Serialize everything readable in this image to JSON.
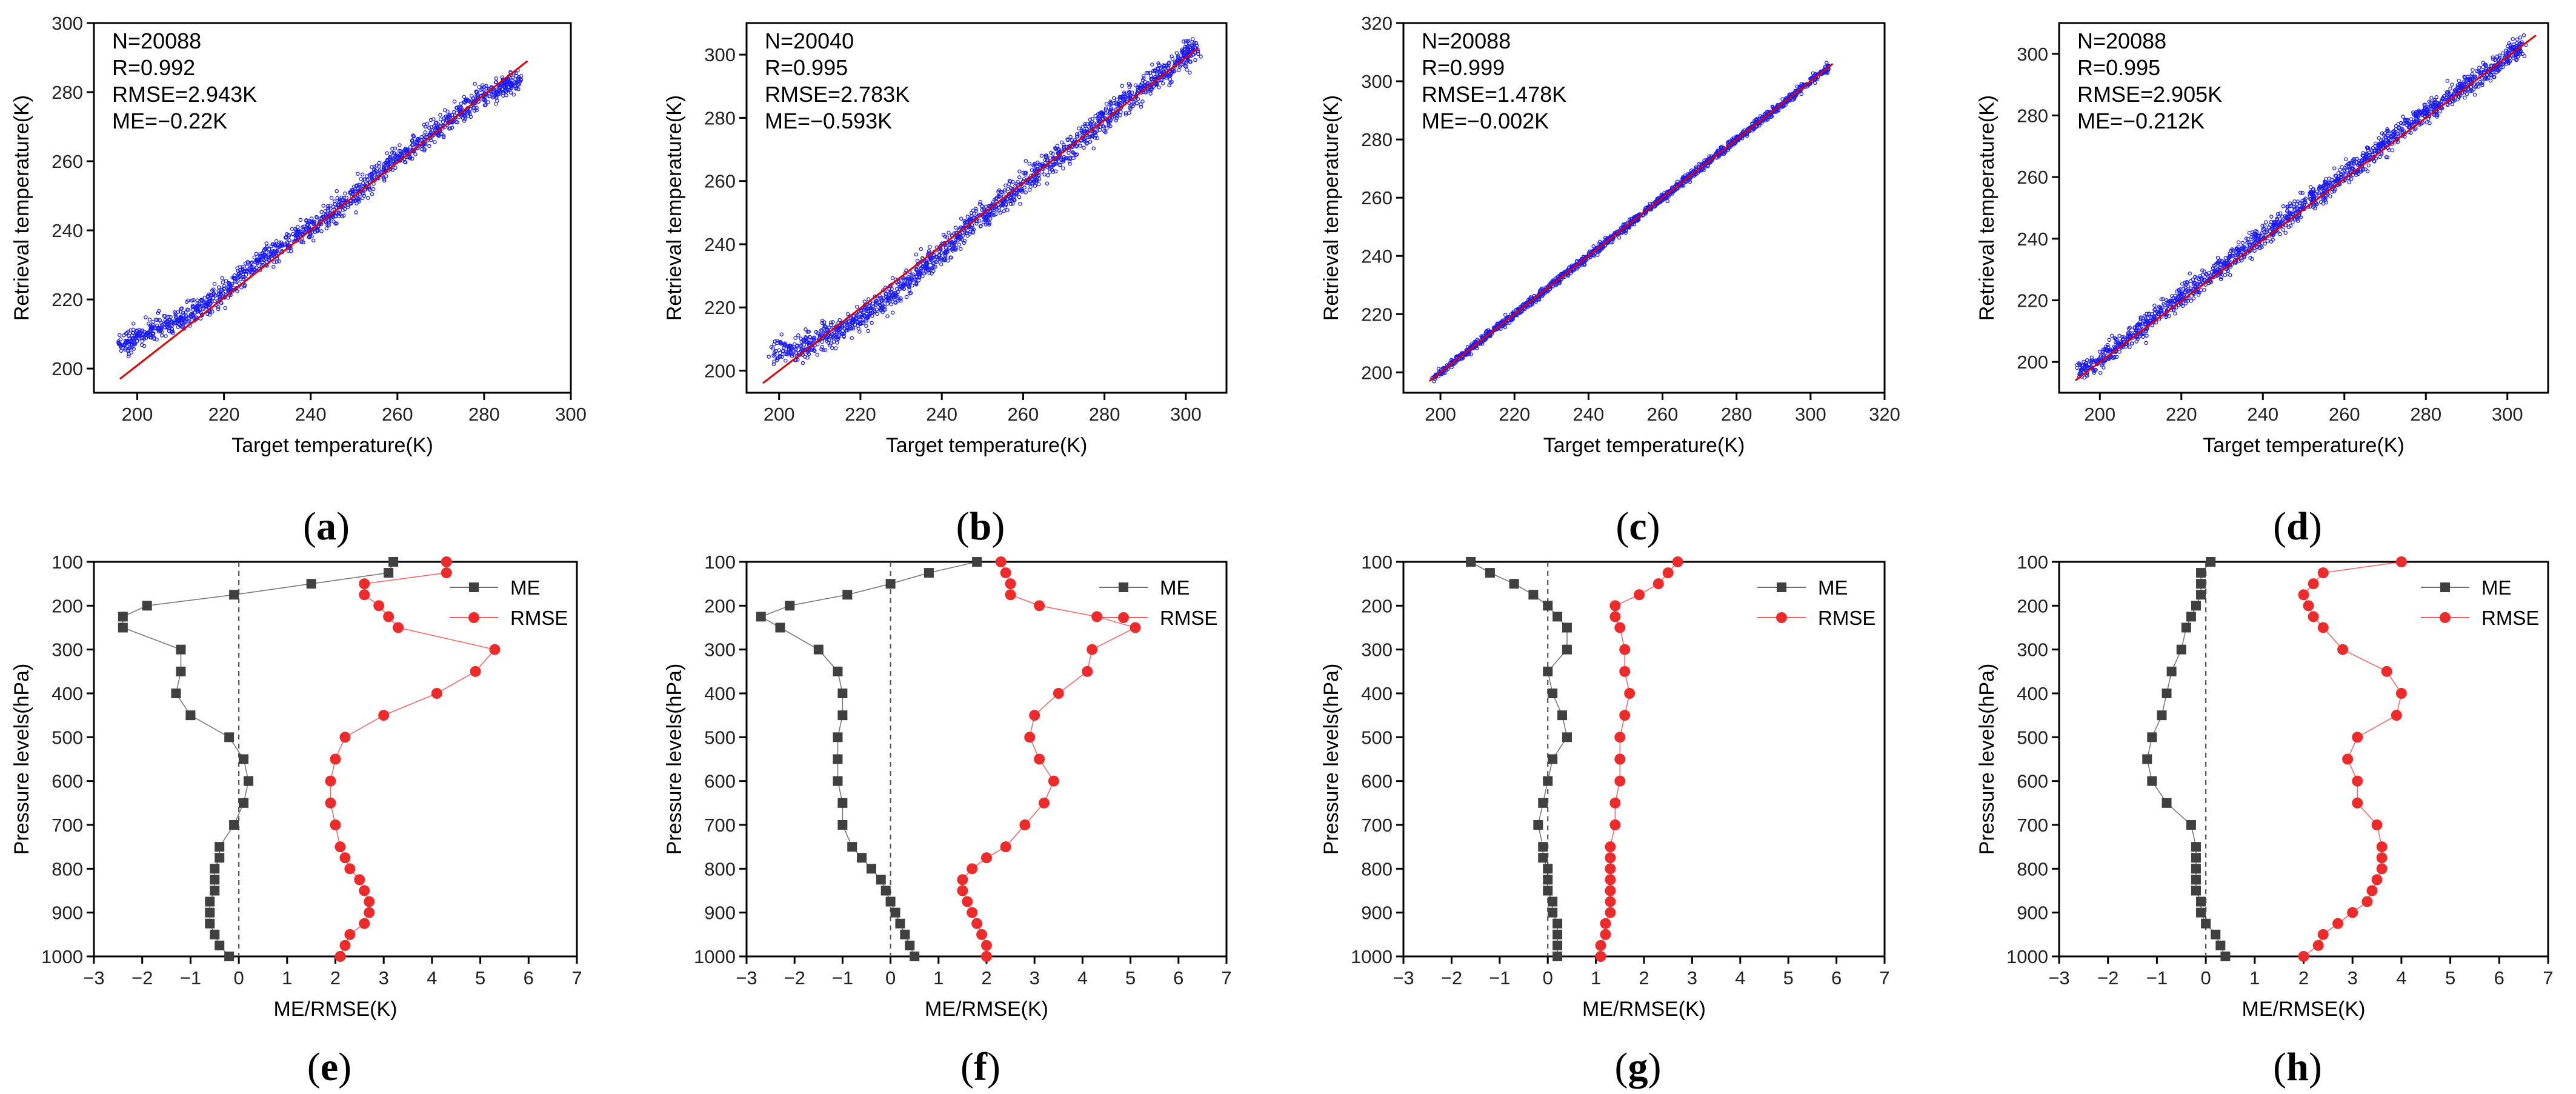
{
  "chart_data": [
    {
      "panel": "a",
      "type": "scatter",
      "xlabel": "Target temperature(K)",
      "ylabel": "Retrieval temperature(K)",
      "xlim": [
        190,
        300
      ],
      "ylim": [
        193,
        300
      ],
      "xticks": [
        200,
        220,
        240,
        260,
        280,
        300
      ],
      "yticks": [
        200,
        220,
        240,
        260,
        280,
        300
      ],
      "stats": [
        "N=20088",
        "R=0.992",
        "RMSE=2.943K",
        "ME=−0.22K"
      ],
      "fit": [
        [
          196,
          197
        ],
        [
          290,
          289
        ]
      ],
      "cloud": [
        [
          196,
          207
        ],
        [
          200,
          209
        ],
        [
          205,
          212
        ],
        [
          210,
          214
        ],
        [
          215,
          218
        ],
        [
          220,
          222
        ],
        [
          225,
          228
        ],
        [
          230,
          233
        ],
        [
          235,
          237
        ],
        [
          240,
          241
        ],
        [
          245,
          245
        ],
        [
          250,
          250
        ],
        [
          255,
          256
        ],
        [
          260,
          261
        ],
        [
          265,
          265
        ],
        [
          270,
          270
        ],
        [
          275,
          275
        ],
        [
          280,
          279
        ],
        [
          285,
          282
        ],
        [
          288,
          284
        ]
      ],
      "spread": 5
    },
    {
      "panel": "b",
      "type": "scatter",
      "xlabel": "Target temperature(K)",
      "ylabel": "Retrieval temperature(K)",
      "xlim": [
        192,
        310
      ],
      "ylim": [
        193,
        310
      ],
      "xticks": [
        200,
        220,
        240,
        260,
        280,
        300
      ],
      "yticks": [
        200,
        220,
        240,
        260,
        280,
        300
      ],
      "stats": [
        "N=20040",
        "R=0.995",
        "RMSE=2.783K",
        "ME=−0.593K"
      ],
      "fit": [
        [
          196,
          196
        ],
        [
          303,
          302
        ]
      ],
      "cloud": [
        [
          198,
          206
        ],
        [
          205,
          207
        ],
        [
          210,
          210
        ],
        [
          215,
          213
        ],
        [
          220,
          217
        ],
        [
          225,
          221
        ],
        [
          230,
          226
        ],
        [
          235,
          232
        ],
        [
          240,
          238
        ],
        [
          245,
          244
        ],
        [
          250,
          249
        ],
        [
          255,
          254
        ],
        [
          260,
          259
        ],
        [
          265,
          264
        ],
        [
          270,
          269
        ],
        [
          275,
          274
        ],
        [
          280,
          280
        ],
        [
          285,
          285
        ],
        [
          290,
          290
        ],
        [
          295,
          295
        ],
        [
          300,
          300
        ],
        [
          302,
          302
        ]
      ],
      "spread": 6
    },
    {
      "panel": "c",
      "type": "scatter",
      "xlabel": "Target temperature(K)",
      "ylabel": "Retrieval temperature(K)",
      "xlim": [
        190,
        320
      ],
      "ylim": [
        193,
        320
      ],
      "xticks": [
        200,
        220,
        240,
        260,
        280,
        300,
        320
      ],
      "yticks": [
        200,
        220,
        240,
        260,
        280,
        300,
        320
      ],
      "stats": [
        "N=20088",
        "R=0.999",
        "RMSE=1.478K",
        "ME=−0.002K"
      ],
      "fit": [
        [
          197,
          197
        ],
        [
          306,
          306
        ]
      ],
      "cloud": [
        [
          198,
          198
        ],
        [
          205,
          205
        ],
        [
          210,
          210
        ],
        [
          215,
          215
        ],
        [
          220,
          220
        ],
        [
          225,
          225
        ],
        [
          230,
          230
        ],
        [
          235,
          235
        ],
        [
          240,
          240
        ],
        [
          245,
          245
        ],
        [
          250,
          250
        ],
        [
          255,
          255
        ],
        [
          260,
          260
        ],
        [
          265,
          265
        ],
        [
          270,
          270
        ],
        [
          275,
          275
        ],
        [
          280,
          280
        ],
        [
          285,
          285
        ],
        [
          290,
          290
        ],
        [
          295,
          295
        ],
        [
          300,
          300
        ],
        [
          305,
          305
        ]
      ],
      "spread": 2
    },
    {
      "panel": "d",
      "type": "scatter",
      "xlabel": "Target temperature(K)",
      "ylabel": "Retrieval temperature(K)",
      "xlim": [
        190,
        310
      ],
      "ylim": [
        190,
        310
      ],
      "xticks": [
        200,
        220,
        240,
        260,
        280,
        300
      ],
      "yticks": [
        200,
        220,
        240,
        260,
        280,
        300
      ],
      "stats": [
        "N=20088",
        "R=0.995",
        "RMSE=2.905K",
        "ME=−0.212K"
      ],
      "fit": [
        [
          194,
          194
        ],
        [
          307,
          306
        ]
      ],
      "cloud": [
        [
          195,
          197
        ],
        [
          200,
          201
        ],
        [
          205,
          206
        ],
        [
          210,
          211
        ],
        [
          215,
          216
        ],
        [
          220,
          221
        ],
        [
          225,
          226
        ],
        [
          230,
          231
        ],
        [
          235,
          236
        ],
        [
          240,
          241
        ],
        [
          245,
          246
        ],
        [
          250,
          251
        ],
        [
          255,
          256
        ],
        [
          260,
          261
        ],
        [
          265,
          266
        ],
        [
          270,
          271
        ],
        [
          275,
          276
        ],
        [
          280,
          281
        ],
        [
          285,
          285
        ],
        [
          290,
          290
        ],
        [
          295,
          294
        ],
        [
          300,
          299
        ],
        [
          304,
          303
        ]
      ],
      "spread": 5
    },
    {
      "panel": "e",
      "type": "line",
      "xlabel": "ME/RMSE(K)",
      "ylabel": "Pressure levels(hPa)",
      "xlim": [
        -3,
        7
      ],
      "ylim": [
        1000,
        100
      ],
      "xticks": [
        -3,
        -2,
        -1,
        0,
        1,
        2,
        3,
        4,
        5,
        6,
        7
      ],
      "yticks": [
        100,
        200,
        300,
        400,
        500,
        600,
        700,
        800,
        900,
        1000
      ],
      "legend": [
        "ME",
        "RMSE"
      ],
      "levels": [
        100,
        125,
        150,
        175,
        200,
        225,
        250,
        300,
        350,
        400,
        450,
        500,
        550,
        600,
        650,
        700,
        750,
        775,
        800,
        825,
        850,
        875,
        900,
        925,
        950,
        975,
        1000
      ],
      "series": [
        {
          "name": "ME",
          "values": [
            3.2,
            3.1,
            1.5,
            -0.1,
            -1.9,
            -2.4,
            -2.4,
            -1.2,
            -1.2,
            -1.3,
            -1.0,
            -0.2,
            0.1,
            0.2,
            0.1,
            -0.1,
            -0.4,
            -0.4,
            -0.5,
            -0.5,
            -0.5,
            -0.6,
            -0.6,
            -0.6,
            -0.5,
            -0.4,
            -0.2
          ]
        },
        {
          "name": "RMSE",
          "values": [
            4.3,
            4.3,
            2.6,
            2.6,
            2.9,
            3.1,
            3.3,
            5.3,
            4.9,
            4.1,
            3.0,
            2.2,
            2.0,
            1.9,
            1.9,
            2.0,
            2.1,
            2.2,
            2.3,
            2.5,
            2.6,
            2.7,
            2.7,
            2.6,
            2.3,
            2.2,
            2.1
          ]
        }
      ]
    },
    {
      "panel": "f",
      "type": "line",
      "xlabel": "ME/RMSE(K)",
      "ylabel": "Pressure levels(hPa)",
      "xlim": [
        -3,
        7
      ],
      "ylim": [
        1000,
        100
      ],
      "xticks": [
        -3,
        -2,
        -1,
        0,
        1,
        2,
        3,
        4,
        5,
        6,
        7
      ],
      "yticks": [
        100,
        200,
        300,
        400,
        500,
        600,
        700,
        800,
        900,
        1000
      ],
      "legend": [
        "ME",
        "RMSE"
      ],
      "levels": [
        100,
        125,
        150,
        175,
        200,
        225,
        250,
        300,
        350,
        400,
        450,
        500,
        550,
        600,
        650,
        700,
        750,
        775,
        800,
        825,
        850,
        875,
        900,
        925,
        950,
        975,
        1000
      ],
      "series": [
        {
          "name": "ME",
          "values": [
            1.8,
            0.8,
            0.0,
            -0.9,
            -2.1,
            -2.7,
            -2.3,
            -1.5,
            -1.1,
            -1.0,
            -1.0,
            -1.1,
            -1.1,
            -1.1,
            -1.0,
            -1.0,
            -0.8,
            -0.6,
            -0.4,
            -0.2,
            -0.1,
            0.0,
            0.1,
            0.2,
            0.3,
            0.4,
            0.5
          ]
        },
        {
          "name": "RMSE",
          "values": [
            2.3,
            2.4,
            2.5,
            2.5,
            3.1,
            4.3,
            5.1,
            4.2,
            4.1,
            3.5,
            3.0,
            2.9,
            3.1,
            3.4,
            3.2,
            2.8,
            2.4,
            2.0,
            1.7,
            1.5,
            1.5,
            1.6,
            1.7,
            1.8,
            1.9,
            2.0,
            2.0
          ]
        }
      ]
    },
    {
      "panel": "g",
      "type": "line",
      "xlabel": "ME/RMSE(K)",
      "ylabel": "Pressure levels(hPa)",
      "xlim": [
        -3,
        7
      ],
      "ylim": [
        1000,
        100
      ],
      "xticks": [
        -3,
        -2,
        -1,
        0,
        1,
        2,
        3,
        4,
        5,
        6,
        7
      ],
      "yticks": [
        100,
        200,
        300,
        400,
        500,
        600,
        700,
        800,
        900,
        1000
      ],
      "legend": [
        "ME",
        "RMSE"
      ],
      "levels": [
        100,
        125,
        150,
        175,
        200,
        225,
        250,
        300,
        350,
        400,
        450,
        500,
        550,
        600,
        650,
        700,
        750,
        775,
        800,
        825,
        850,
        875,
        900,
        925,
        950,
        975,
        1000
      ],
      "series": [
        {
          "name": "ME",
          "values": [
            -1.6,
            -1.2,
            -0.7,
            -0.3,
            0.0,
            0.2,
            0.4,
            0.4,
            0.0,
            0.1,
            0.3,
            0.4,
            0.1,
            0.0,
            -0.1,
            -0.2,
            -0.1,
            -0.1,
            0.0,
            0.0,
            0.0,
            0.1,
            0.1,
            0.2,
            0.2,
            0.2,
            0.2
          ]
        },
        {
          "name": "RMSE",
          "values": [
            2.7,
            2.5,
            2.3,
            1.9,
            1.4,
            1.4,
            1.5,
            1.6,
            1.6,
            1.7,
            1.6,
            1.5,
            1.5,
            1.5,
            1.4,
            1.4,
            1.3,
            1.3,
            1.3,
            1.3,
            1.3,
            1.3,
            1.3,
            1.2,
            1.2,
            1.1,
            1.1
          ]
        }
      ]
    },
    {
      "panel": "h",
      "type": "line",
      "xlabel": "ME/RMSE(K)",
      "ylabel": "Pressure levels(hPa)",
      "xlim": [
        -3,
        7
      ],
      "ylim": [
        1000,
        100
      ],
      "xticks": [
        -3,
        -2,
        -1,
        0,
        1,
        2,
        3,
        4,
        5,
        6,
        7
      ],
      "yticks": [
        100,
        200,
        300,
        400,
        500,
        600,
        700,
        800,
        900,
        1000
      ],
      "legend": [
        "ME",
        "RMSE"
      ],
      "levels": [
        100,
        125,
        150,
        175,
        200,
        225,
        250,
        300,
        350,
        400,
        450,
        500,
        550,
        600,
        650,
        700,
        750,
        775,
        800,
        825,
        850,
        875,
        900,
        925,
        950,
        975,
        1000
      ],
      "series": [
        {
          "name": "ME",
          "values": [
            0.1,
            -0.1,
            -0.1,
            -0.1,
            -0.2,
            -0.3,
            -0.4,
            -0.5,
            -0.7,
            -0.8,
            -0.9,
            -1.1,
            -1.2,
            -1.1,
            -0.8,
            -0.3,
            -0.2,
            -0.2,
            -0.2,
            -0.2,
            -0.2,
            -0.1,
            -0.1,
            0.0,
            0.2,
            0.3,
            0.4
          ]
        },
        {
          "name": "RMSE",
          "values": [
            4.0,
            2.4,
            2.2,
            2.0,
            2.1,
            2.2,
            2.4,
            2.8,
            3.7,
            4.0,
            3.9,
            3.1,
            2.9,
            3.1,
            3.1,
            3.5,
            3.6,
            3.6,
            3.6,
            3.5,
            3.4,
            3.3,
            3.0,
            2.7,
            2.4,
            2.3,
            2.0
          ]
        }
      ]
    }
  ],
  "captions": [
    "(a)",
    "(b)",
    "(c)",
    "(d)",
    "(e)",
    "(f)",
    "(g)",
    "(h)"
  ],
  "colors": {
    "scatter": "#1a1aff",
    "fit": "#e00000",
    "me": "#404040",
    "rmse": "#ee2a2a",
    "zero": "#555555"
  }
}
